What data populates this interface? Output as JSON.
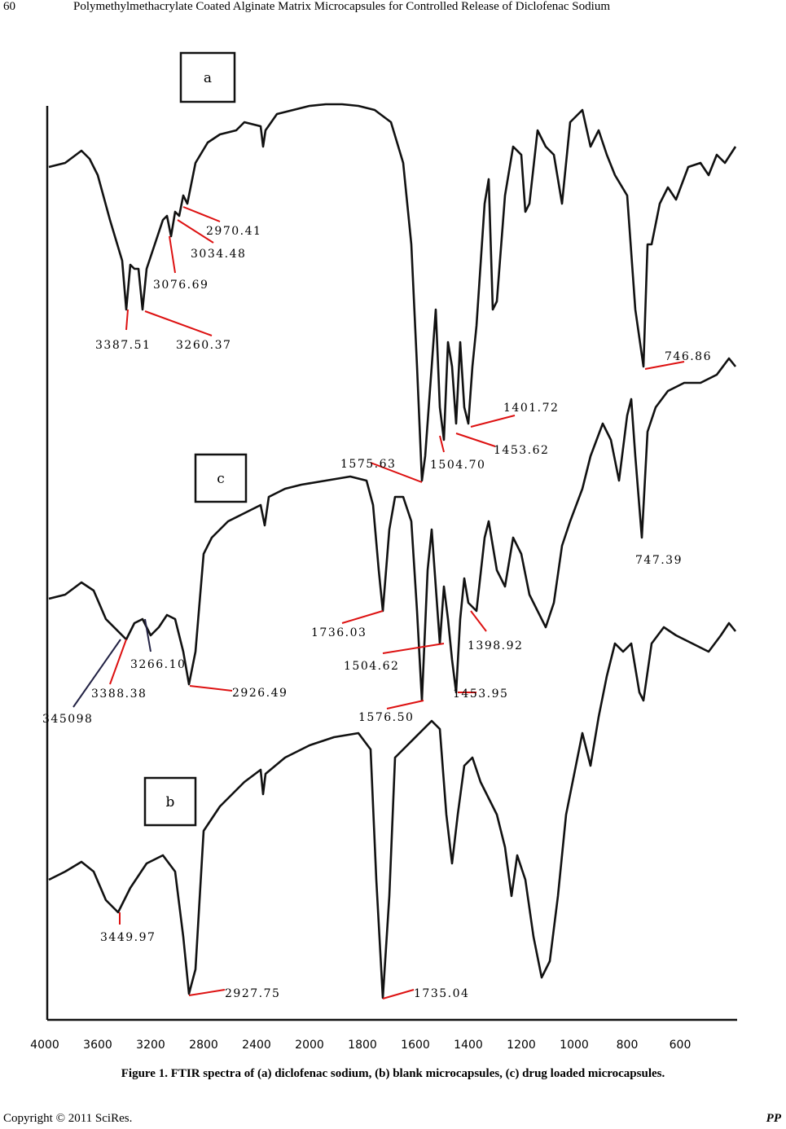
{
  "header": {
    "page_number": "60",
    "running_title": "Polymethylmethacrylate Coated Alginate Matrix Microcapsules for Controlled Release of Diclofenac Sodium"
  },
  "figure": {
    "panels": [
      {
        "label": "a",
        "peaks": [
          "2970.41",
          "3034.48",
          "3076.69",
          "3387.51",
          "3260.37",
          "746.86",
          "1401.72",
          "1453.62",
          "1504.70",
          "1575.63"
        ]
      },
      {
        "label": "c",
        "peaks": [
          "747.39",
          "1736.03",
          "1504.62",
          "1398.92",
          "1453.95",
          "1576.50",
          "2926.49",
          "3266.10",
          "3388.38",
          "345098"
        ]
      },
      {
        "label": "b",
        "peaks": [
          "3449.97",
          "2927.75",
          "1735.04"
        ]
      }
    ],
    "x_axis_labels": [
      "4000",
      "3600",
      "3200",
      "2800",
      "2400",
      "2000",
      "1800",
      "1600",
      "1400",
      "1200",
      "1000",
      "800",
      "600"
    ]
  },
  "caption": "Figure 1. FTIR spectra of (a) diclofenac sodium, (b) blank microcapsules, (c) drug loaded microcapsules.",
  "footer": {
    "copyright": "Copyright © 2011 SciRes.",
    "journal": "PP"
  }
}
